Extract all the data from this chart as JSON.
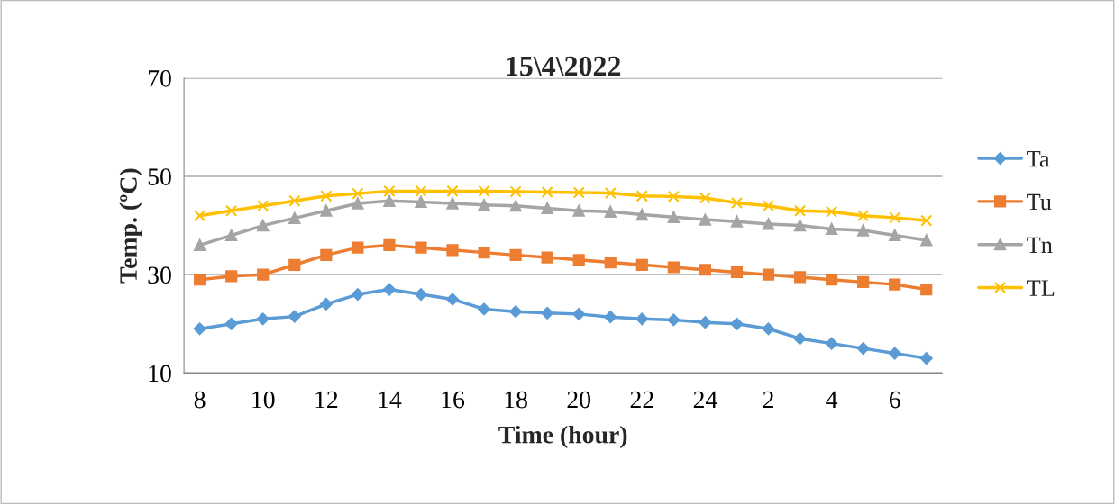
{
  "chart_data": {
    "type": "line",
    "title": "15\\4\\2022",
    "xlabel": "Time (hour)",
    "ylabel": "Temp. (ºC)",
    "categories": [
      "8",
      null,
      "10",
      null,
      "12",
      null,
      "14",
      null,
      "16",
      null,
      "18",
      null,
      "20",
      null,
      "22",
      null,
      "24",
      null,
      "2",
      null,
      "4",
      null,
      "6",
      null
    ],
    "series": [
      {
        "name": "Ta",
        "color": "#5b9bd5",
        "marker": "diamond",
        "values": [
          19,
          20,
          21,
          21.5,
          24,
          26,
          27,
          26,
          25,
          23,
          22.5,
          22.2,
          22,
          21.4,
          21,
          20.8,
          20.3,
          20,
          19,
          17,
          16,
          15,
          14,
          13
        ]
      },
      {
        "name": "Tu",
        "color": "#ed7d31",
        "marker": "square",
        "values": [
          29,
          29.7,
          30,
          32,
          34,
          35.5,
          36,
          35.5,
          35,
          34.5,
          34,
          33.5,
          33,
          32.5,
          32,
          31.5,
          31,
          30.5,
          30,
          29.5,
          29,
          28.5,
          28,
          27
        ]
      },
      {
        "name": "Tn",
        "color": "#a5a5a5",
        "marker": "triangle",
        "values": [
          36,
          38,
          40,
          41.5,
          43,
          44.5,
          45,
          44.8,
          44.5,
          44.2,
          44,
          43.5,
          43,
          42.8,
          42.2,
          41.7,
          41.2,
          40.8,
          40.3,
          40,
          39.3,
          39,
          38,
          37
        ]
      },
      {
        "name": "TL",
        "color": "#ffc000",
        "marker": "cross",
        "values": [
          42,
          43,
          44,
          45,
          46,
          46.5,
          47,
          47,
          47,
          47,
          46.9,
          46.8,
          46.7,
          46.6,
          46,
          45.9,
          45.6,
          44.6,
          44,
          43,
          42.8,
          42,
          41.6,
          41
        ]
      }
    ],
    "ylim": [
      10,
      70
    ],
    "yticks": [
      10,
      30,
      50,
      70
    ],
    "grid": "y",
    "legend": "right",
    "line_style": "solid"
  }
}
